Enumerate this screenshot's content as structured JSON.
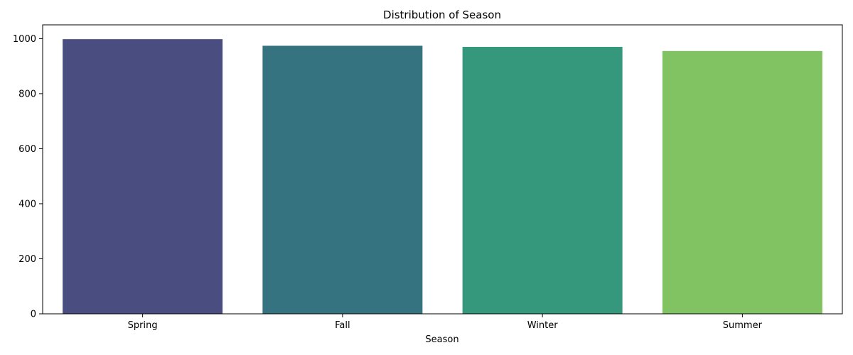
{
  "chart_data": {
    "type": "bar",
    "title": "Distribution of Season",
    "xlabel": "Season",
    "ylabel": "",
    "categories": [
      "Spring",
      "Fall",
      "Winter",
      "Summer"
    ],
    "values": [
      998,
      974,
      970,
      955
    ],
    "colors": [
      "#4a4d7f",
      "#367380",
      "#35977c",
      "#81c262"
    ],
    "ylim": [
      0,
      1050
    ],
    "yticks": [
      0,
      200,
      400,
      600,
      800,
      1000
    ],
    "grid": false,
    "legend": "none"
  }
}
